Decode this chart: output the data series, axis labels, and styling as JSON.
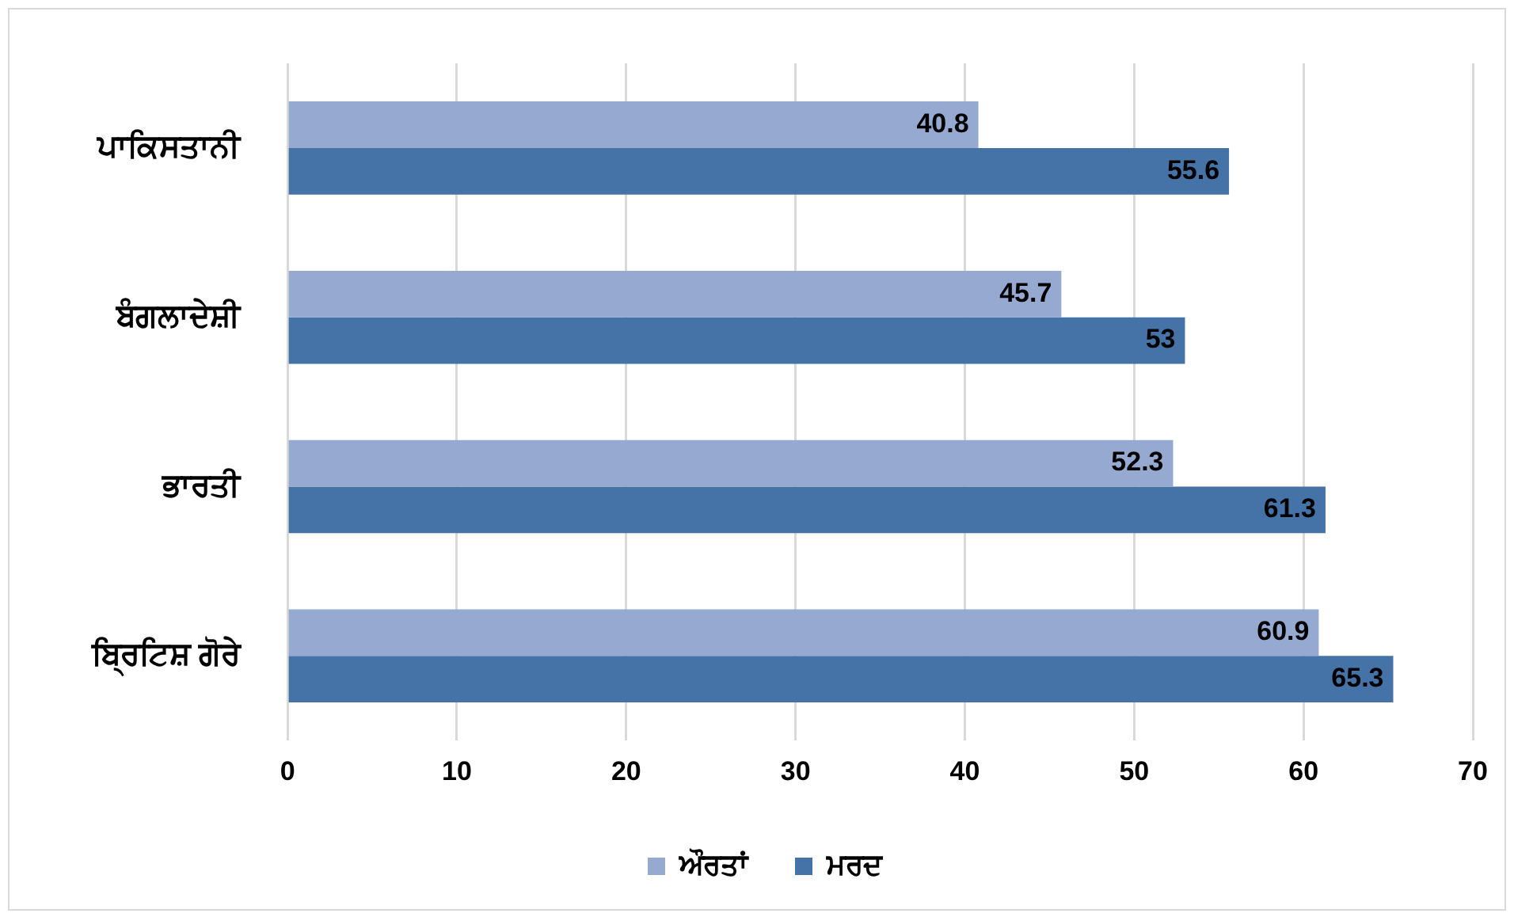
{
  "chart_data": {
    "type": "bar",
    "orientation": "horizontal",
    "categories": [
      "ਪਾਕਿਸਤਾਨੀ",
      "ਬੰਗਲਾਦੇਸ਼ੀ",
      "ਭਾਰਤੀ",
      "ਬ੍ਰਿਟਿਸ਼ ਗੋਰੇ"
    ],
    "series": [
      {
        "name": "ਔਰਤਾਂ",
        "color": "#95a9d1",
        "values": [
          40.8,
          45.7,
          52.3,
          60.9
        ]
      },
      {
        "name": "ਮਰਦ",
        "color": "#4573a7",
        "values": [
          55.6,
          53,
          61.3,
          65.3
        ]
      }
    ],
    "xlim": [
      0,
      70
    ],
    "xticks": [
      0,
      10,
      20,
      30,
      40,
      50,
      60,
      70
    ],
    "grid": "x",
    "legend": "bottom",
    "data_labels": true
  }
}
